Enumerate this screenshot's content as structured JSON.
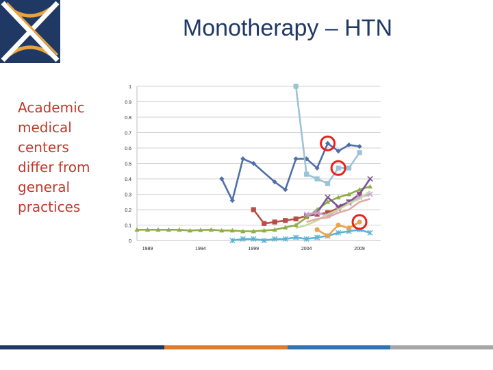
{
  "slide": {
    "title": "Monotherapy – HTN",
    "side_text_lines": [
      "Academic",
      "medical",
      "centers",
      "differ from",
      "general",
      "practices"
    ],
    "colors": {
      "title": "#1f3864",
      "side_text": "#c0392b",
      "logo_navy": "#1f3864",
      "logo_gold": "#e8a33d",
      "bar_navy": "#1f3864",
      "bar_orange": "#e07b2a",
      "bar_blue": "#2e75b6",
      "bar_gray": "#a6a6a6",
      "highlight_circle": "#e8211c"
    }
  },
  "chart_data": {
    "type": "line",
    "title": "",
    "xlabel": "",
    "ylabel": "",
    "ylim": [
      0,
      1
    ],
    "xlim": [
      1988,
      2011
    ],
    "y_ticks": [
      "0",
      "0.1",
      "0.2",
      "0.3",
      "0.4",
      "0.5",
      "0.6",
      "0.7",
      "0.8",
      "0.9",
      "1"
    ],
    "x_ticks": [
      "1989",
      "1994",
      "1999",
      "2004",
      "2009"
    ],
    "grid": "horizontal",
    "legend": "none",
    "series": [
      {
        "color": "#4f6fa8",
        "marker": "diamond",
        "x": [
          1996,
          1997,
          1998,
          1999,
          2001,
          2002,
          2003,
          2004,
          2005,
          2006,
          2007,
          2008,
          2009
        ],
        "y": [
          0.4,
          0.26,
          0.53,
          0.5,
          0.38,
          0.33,
          0.53,
          0.53,
          0.47,
          0.63,
          0.58,
          0.62,
          0.61
        ]
      },
      {
        "color": "#9bc3d6",
        "marker": "square",
        "x": [
          2003,
          2004,
          2005,
          2006,
          2007,
          2008,
          2009
        ],
        "y": [
          1.0,
          0.43,
          0.4,
          0.37,
          0.47,
          0.47,
          0.57
        ]
      },
      {
        "color": "#b84e45",
        "marker": "square",
        "x": [
          1999,
          2000,
          2001,
          2002,
          2003,
          2004,
          2005,
          2006,
          2007,
          2008,
          2009
        ],
        "y": [
          0.2,
          0.11,
          0.12,
          0.13,
          0.14,
          0.16,
          0.17,
          0.18,
          0.21,
          0.25,
          0.3
        ]
      },
      {
        "color": "#8fae49",
        "marker": "triangle",
        "x": [
          1988,
          1989,
          1990,
          1991,
          1992,
          1993,
          1994,
          1995,
          1996,
          1997,
          1998,
          1999,
          2000,
          2001,
          2002,
          2003,
          2004,
          2005,
          2006,
          2007,
          2008,
          2009,
          2010
        ],
        "y": [
          0.07,
          0.07,
          0.07,
          0.07,
          0.07,
          0.065,
          0.068,
          0.07,
          0.065,
          0.065,
          0.06,
          0.06,
          0.065,
          0.07,
          0.085,
          0.1,
          0.15,
          0.2,
          0.25,
          0.28,
          0.3,
          0.33,
          0.35
        ]
      },
      {
        "color": "#7a5296",
        "marker": "x",
        "x": [
          2005,
          2006,
          2007,
          2008,
          2009,
          2010
        ],
        "y": [
          0.18,
          0.28,
          0.22,
          0.25,
          0.3,
          0.4
        ]
      },
      {
        "color": "#c9a0dc",
        "marker": "x",
        "x": [
          2004,
          2005,
          2006,
          2007,
          2008,
          2009,
          2010
        ],
        "y": [
          0.17,
          0.18,
          0.16,
          0.2,
          0.24,
          0.28,
          0.3
        ]
      },
      {
        "color": "#5bb3d4",
        "marker": "star",
        "x": [
          1997,
          1998,
          1999,
          2000,
          2001,
          2002,
          2003,
          2004,
          2005,
          2006,
          2007,
          2008,
          2009,
          2010
        ],
        "y": [
          0.0,
          0.01,
          0.01,
          0.0,
          0.01,
          0.01,
          0.02,
          0.01,
          0.02,
          0.03,
          0.05,
          0.06,
          0.07,
          0.05
        ]
      },
      {
        "color": "#e8a44a",
        "marker": "circle",
        "x": [
          2005,
          2006,
          2007,
          2008,
          2009
        ],
        "y": [
          0.07,
          0.03,
          0.1,
          0.08,
          0.12
        ]
      },
      {
        "color": "#c5dc9b",
        "marker": "none",
        "x": [
          2003,
          2004,
          2005,
          2006,
          2007,
          2008,
          2009,
          2010
        ],
        "y": [
          0.08,
          0.1,
          0.13,
          0.17,
          0.2,
          0.24,
          0.27,
          0.32
        ]
      },
      {
        "color": "#e0a8a6",
        "marker": "none",
        "x": [
          2004,
          2005,
          2006,
          2007,
          2008,
          2009,
          2010
        ],
        "y": [
          0.12,
          0.14,
          0.15,
          0.18,
          0.2,
          0.25,
          0.27
        ]
      }
    ],
    "highlight_circles": [
      {
        "x": 2006,
        "y": 0.63
      },
      {
        "x": 2007,
        "y": 0.47
      },
      {
        "x": 2009,
        "y": 0.12
      }
    ]
  }
}
